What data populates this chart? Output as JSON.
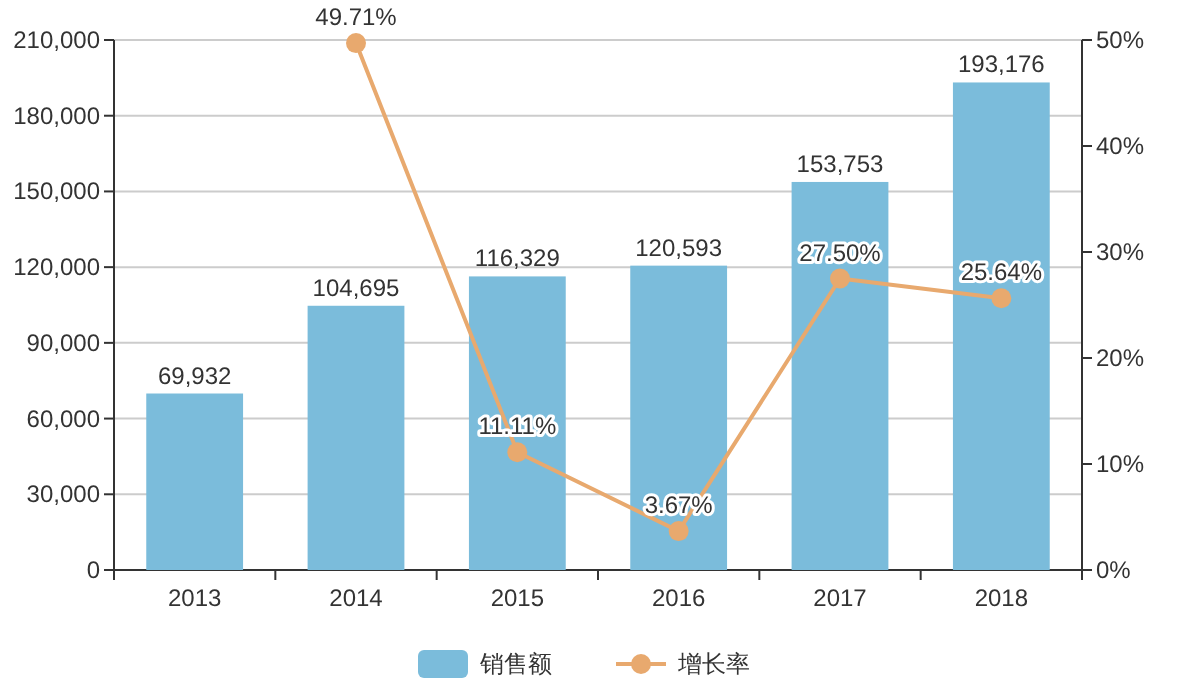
{
  "chart_data": {
    "type": "bar",
    "categories": [
      "2013",
      "2014",
      "2015",
      "2016",
      "2017",
      "2018"
    ],
    "series": [
      {
        "name": "销售额",
        "color": "#7bbcdb",
        "values": [
          69932,
          104695,
          116329,
          120593,
          153753,
          193176
        ],
        "value_labels": [
          "69,932",
          "104,695",
          "116,329",
          "120,593",
          "153,753",
          "193,176"
        ]
      },
      {
        "name": "增长率",
        "type": "line",
        "axis": "y2",
        "color": "#e8a96e",
        "marker": "circle",
        "values": [
          null,
          49.71,
          11.11,
          3.67,
          27.5,
          25.64
        ],
        "value_labels": [
          null,
          "49.71%",
          "11.11%",
          "3.67%",
          "27.50%",
          "25.64%"
        ]
      }
    ],
    "ylim": [
      0,
      210000
    ],
    "yticks": [
      {
        "value": 0,
        "label": "0"
      },
      {
        "value": 30000,
        "label": "30,000"
      },
      {
        "value": 60000,
        "label": "60,000"
      },
      {
        "value": 90000,
        "label": "90,000"
      },
      {
        "value": 120000,
        "label": "120,000"
      },
      {
        "value": 150000,
        "label": "150,000"
      },
      {
        "value": 180000,
        "label": "180,000"
      },
      {
        "value": 210000,
        "label": "210,000"
      }
    ],
    "y2lim": [
      0,
      50
    ],
    "y2ticks": [
      {
        "value": 0,
        "label": "0%"
      },
      {
        "value": 10,
        "label": "10%"
      },
      {
        "value": 20,
        "label": "20%"
      },
      {
        "value": 30,
        "label": "30%"
      },
      {
        "value": 40,
        "label": "40%"
      },
      {
        "value": 50,
        "label": "50%"
      }
    ],
    "grid": "y",
    "legend": "bottom"
  }
}
